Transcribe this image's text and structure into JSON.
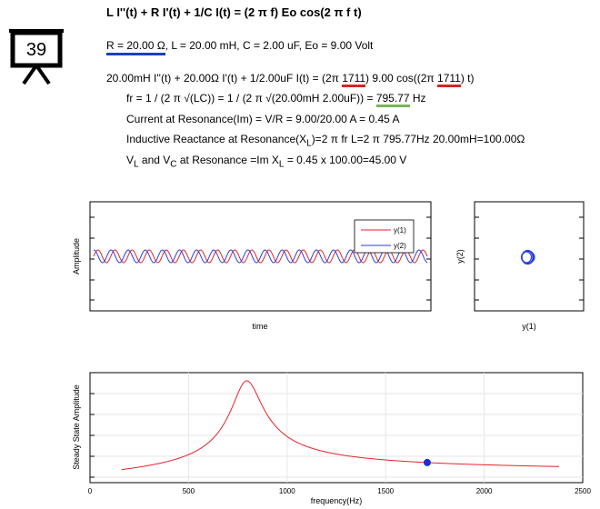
{
  "badge": {
    "number": "39"
  },
  "header": {
    "equation": "L I''(t) + R I'(t) + 1/C I(t) = (2 π f) Eo cos(2 π f t)",
    "r_param": "R = 20.00 Ω",
    "other_params": ", L = 20.00 mH, C = 2.00 uF, Eo = 9.00 Volt"
  },
  "calc": {
    "eq_pre": "20.00mH I''(t) + 20.00Ω I'(t) + 1/2.00uF I(t) = (2π ",
    "freq1": "1711",
    "eq_mid": ") 9.00 cos((2π ",
    "freq2": "1711",
    "eq_post": ") t)",
    "fr_pre": "fr = 1 / (2 π √(LC)) = 1 / (2 π √(20.00mH 2.00uF)) = ",
    "fr_val": "795.77",
    "fr_unit": " Hz",
    "im_line": "Current at Resonance(Im) = V/R = 9.00/20.00 A = 0.45 A",
    "xl_pre": "Inductive Reactance at Resonance(X",
    "xl_sub": "L",
    "xl_post": ")=2 π fr L=2 π 795.77Hz 20.00mH=100.00Ω",
    "vl_v1": "V",
    "vl_sub1": "L",
    "vl_and": " and V",
    "vl_sub2": "C",
    "vl_mid": " at Resonance =Im X",
    "vl_sub3": "L",
    "vl_post": " = 0.45 x 100.00=45.00 V"
  },
  "colors": {
    "y1": "#e8222a",
    "y2": "#2b3fe0",
    "highlight_blue": "#1a3fbf",
    "highlight_red": "#d8231f",
    "highlight_green": "#79b35a",
    "marker": "#1530d8"
  },
  "chart_data": [
    {
      "type": "line",
      "ylabel": "Amplitude",
      "xlabel": "time",
      "legend_position": "top-right",
      "series": [
        {
          "name": "y(1)",
          "color": "#e8222a",
          "cycles": 19.5,
          "phase": 0.0
        },
        {
          "name": "y(2)",
          "color": "#2b3fe0",
          "cycles": 19.5,
          "phase": 1.45
        }
      ]
    },
    {
      "type": "scatter",
      "xlabel": "y(1)",
      "ylabel": "y(2)",
      "description_series": "phase portrait ellipse",
      "color": "#2b3fe0"
    },
    {
      "type": "line",
      "xlabel": "frequency(Hz)",
      "ylabel": "Steady State Amplitude",
      "xlim": [
        0,
        2500
      ],
      "x_ticks": [
        0,
        500,
        1000,
        1500,
        2000,
        2500
      ],
      "grid": true,
      "peak_frequency": 795.77,
      "x_range": [
        160,
        2380
      ],
      "marker": {
        "frequency": 1711
      },
      "color": "#e8222a"
    }
  ]
}
